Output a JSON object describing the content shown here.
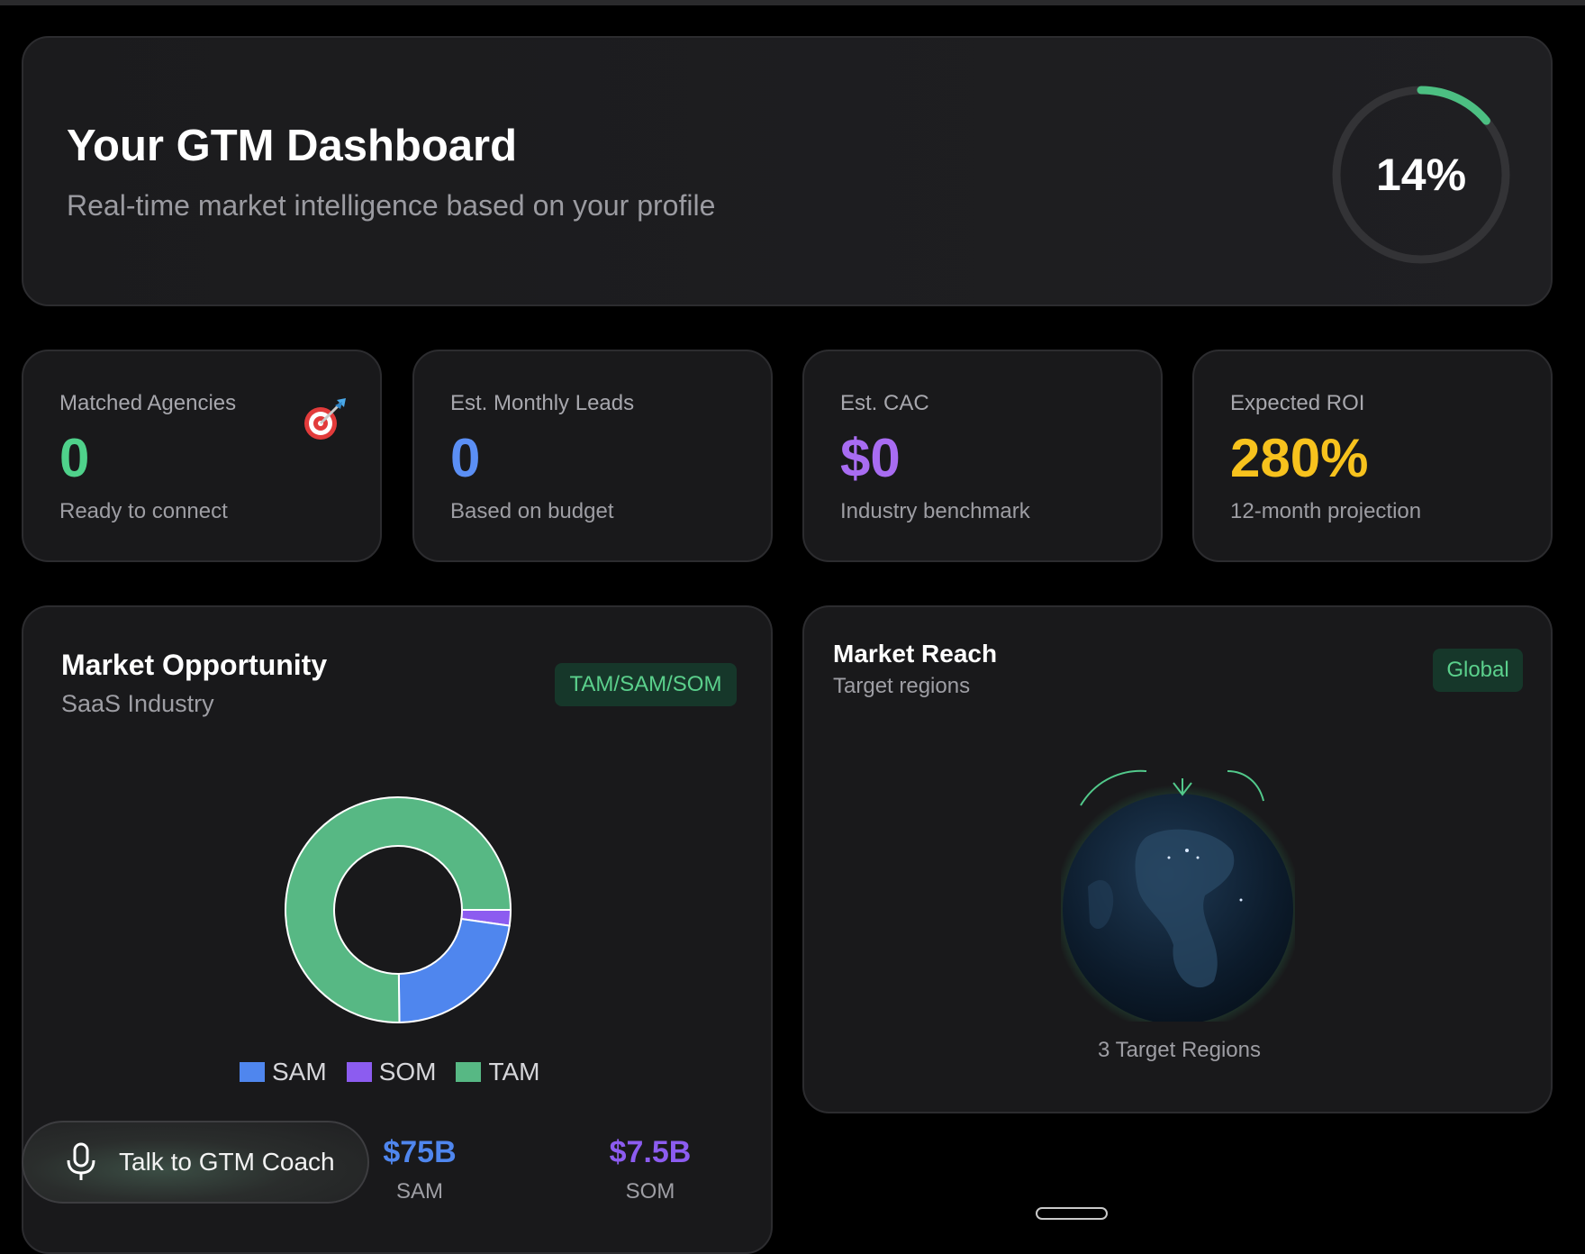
{
  "header": {
    "title": "Your GTM Dashboard",
    "subtitle": "Real-time market intelligence based on your profile",
    "progress_label": "14%",
    "progress_value": 0.14,
    "progress_color": "#4cbf82"
  },
  "stats": [
    {
      "label": "Matched Agencies",
      "value": "0",
      "note": "Ready to connect",
      "color": "#4fd18b",
      "icon": "dart-target-icon"
    },
    {
      "label": "Est. Monthly Leads",
      "value": "0",
      "note": "Based on budget",
      "color": "#5b8ff5"
    },
    {
      "label": "Est. CAC",
      "value": "$0",
      "note": "Industry benchmark",
      "color": "#a86cf2"
    },
    {
      "label": "Expected ROI",
      "value": "280%",
      "note": "12-month projection",
      "color": "#f7c21d"
    }
  ],
  "market_opportunity": {
    "title": "Market Opportunity",
    "subtitle": "SaaS Industry",
    "badge": "TAM/SAM/SOM",
    "summary": [
      {
        "value": "$75B",
        "label": "SAM",
        "color": "#4f86ee"
      },
      {
        "value": "$7.5B",
        "label": "SOM",
        "color": "#8c5cf0"
      }
    ]
  },
  "chart_data": {
    "type": "pie",
    "donut": true,
    "labels": [
      "SAM",
      "SOM",
      "TAM"
    ],
    "values": [
      75,
      7.5,
      250
    ],
    "colors": [
      "#4f86ee",
      "#8c5cf0",
      "#57b884"
    ],
    "legend": "bottom"
  },
  "market_reach": {
    "title": "Market Reach",
    "subtitle": "Target regions",
    "badge": "Global",
    "caption": "3 Target Regions"
  },
  "coach_button": {
    "label": "Talk to GTM Coach",
    "icon": "microphone-icon"
  }
}
